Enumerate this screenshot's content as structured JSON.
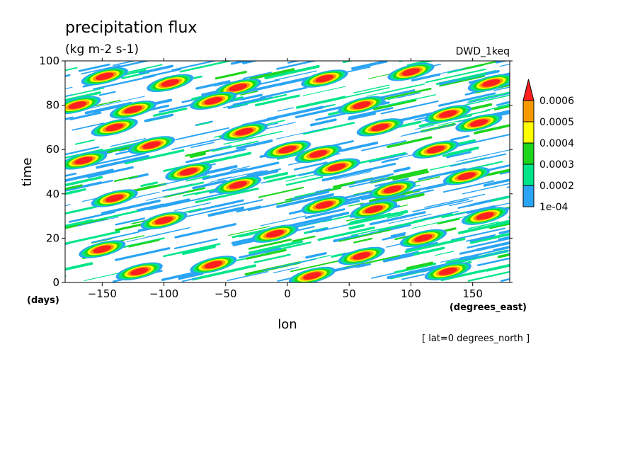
{
  "chart_data": {
    "type": "heatmap",
    "title": "precipitation flux",
    "subtitle": "(kg m-2 s-1)",
    "run_label": "DWD_1keq",
    "xlabel": "lon",
    "x_unit": "(degrees_east)",
    "ylabel": "time",
    "y_unit": "(days)",
    "footnote": "[ lat=0 degrees_north ]",
    "xlim": [
      -180,
      180
    ],
    "ylim": [
      0,
      100
    ],
    "x_ticks": [
      -150,
      -100,
      -50,
      0,
      50,
      100,
      150
    ],
    "y_ticks": [
      0,
      20,
      40,
      60,
      80,
      100
    ],
    "colorbar": {
      "levels": [
        "1e-04",
        "0.0002",
        "0.0003",
        "0.0004",
        "0.0005",
        "0.0006"
      ],
      "colors": [
        "#2aa4f4",
        "#00e58a",
        "#1dd51d",
        "#ffff00",
        "#f79a00",
        "#ff1f1f"
      ],
      "extend": "max"
    },
    "patches": [
      {
        "lon": -148,
        "t": 93,
        "level": 5
      },
      {
        "lon": -95,
        "t": 90,
        "level": 5
      },
      {
        "lon": -40,
        "t": 88,
        "level": 5
      },
      {
        "lon": 30,
        "t": 92,
        "level": 5
      },
      {
        "lon": 100,
        "t": 95,
        "level": 5
      },
      {
        "lon": 165,
        "t": 90,
        "level": 5
      },
      {
        "lon": -170,
        "t": 80,
        "level": 5
      },
      {
        "lon": -125,
        "t": 78,
        "level": 5
      },
      {
        "lon": -60,
        "t": 82,
        "level": 5
      },
      {
        "lon": 60,
        "t": 80,
        "level": 5
      },
      {
        "lon": 130,
        "t": 76,
        "level": 5
      },
      {
        "lon": -140,
        "t": 70,
        "level": 5
      },
      {
        "lon": -35,
        "t": 68,
        "level": 5
      },
      {
        "lon": 75,
        "t": 70,
        "level": 5
      },
      {
        "lon": 155,
        "t": 72,
        "level": 5
      },
      {
        "lon": -110,
        "t": 62,
        "level": 5
      },
      {
        "lon": 0,
        "t": 60,
        "level": 5
      },
      {
        "lon": 25,
        "t": 58,
        "level": 5
      },
      {
        "lon": 120,
        "t": 60,
        "level": 5
      },
      {
        "lon": -165,
        "t": 55,
        "level": 5
      },
      {
        "lon": -80,
        "t": 50,
        "level": 5
      },
      {
        "lon": 40,
        "t": 52,
        "level": 5
      },
      {
        "lon": 145,
        "t": 48,
        "level": 5
      },
      {
        "lon": -40,
        "t": 44,
        "level": 5
      },
      {
        "lon": 85,
        "t": 42,
        "level": 5
      },
      {
        "lon": -140,
        "t": 38,
        "level": 5
      },
      {
        "lon": 30,
        "t": 35,
        "level": 5
      },
      {
        "lon": 70,
        "t": 33,
        "level": 5
      },
      {
        "lon": -100,
        "t": 28,
        "level": 5
      },
      {
        "lon": 160,
        "t": 30,
        "level": 5
      },
      {
        "lon": -10,
        "t": 22,
        "level": 5
      },
      {
        "lon": 110,
        "t": 20,
        "level": 5
      },
      {
        "lon": -150,
        "t": 15,
        "level": 5
      },
      {
        "lon": 60,
        "t": 12,
        "level": 5
      },
      {
        "lon": -60,
        "t": 8,
        "level": 5
      },
      {
        "lon": 130,
        "t": 5,
        "level": 5
      },
      {
        "lon": -120,
        "t": 5,
        "level": 5
      },
      {
        "lon": 20,
        "t": 3,
        "level": 5
      }
    ]
  }
}
